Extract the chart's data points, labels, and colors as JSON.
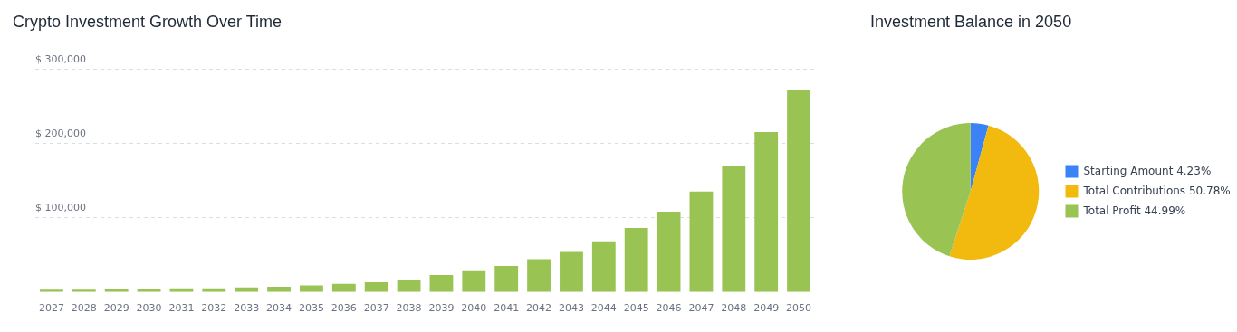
{
  "chart_data": [
    {
      "type": "bar",
      "title": "Crypto Investment Growth Over Time",
      "categories": [
        "2027",
        "2028",
        "2029",
        "2030",
        "2031",
        "2032",
        "2033",
        "2034",
        "2035",
        "2036",
        "2037",
        "2038",
        "2039",
        "2040",
        "2041",
        "2042",
        "2043",
        "2044",
        "2045",
        "2046",
        "2047",
        "2048",
        "2049",
        "2050"
      ],
      "values": [
        3000,
        3000,
        4000,
        4000,
        5000,
        5000,
        6000,
        7000,
        9000,
        11000,
        13000,
        16000,
        23000,
        28000,
        35000,
        44000,
        54000,
        68000,
        86000,
        108000,
        135000,
        170000,
        215000,
        271000
      ],
      "color": "#99c454",
      "ylim": [
        0,
        300000
      ],
      "yticks": [
        {
          "value": 100000,
          "label": "$ 100,000"
        },
        {
          "value": 200000,
          "label": "$ 200,000"
        },
        {
          "value": 300000,
          "label": "$ 300,000"
        }
      ],
      "grid": "y",
      "legend": false
    },
    {
      "type": "pie",
      "title": "Investment Balance in 2050",
      "categories": [
        "Starting Amount 4.23%",
        "Total Contributions 50.78%",
        "Total Profit 44.99%"
      ],
      "values": [
        4.23,
        50.78,
        44.99
      ],
      "colors": [
        "#3b82f6",
        "#f2b90f",
        "#99c454"
      ],
      "legend": "right"
    }
  ]
}
